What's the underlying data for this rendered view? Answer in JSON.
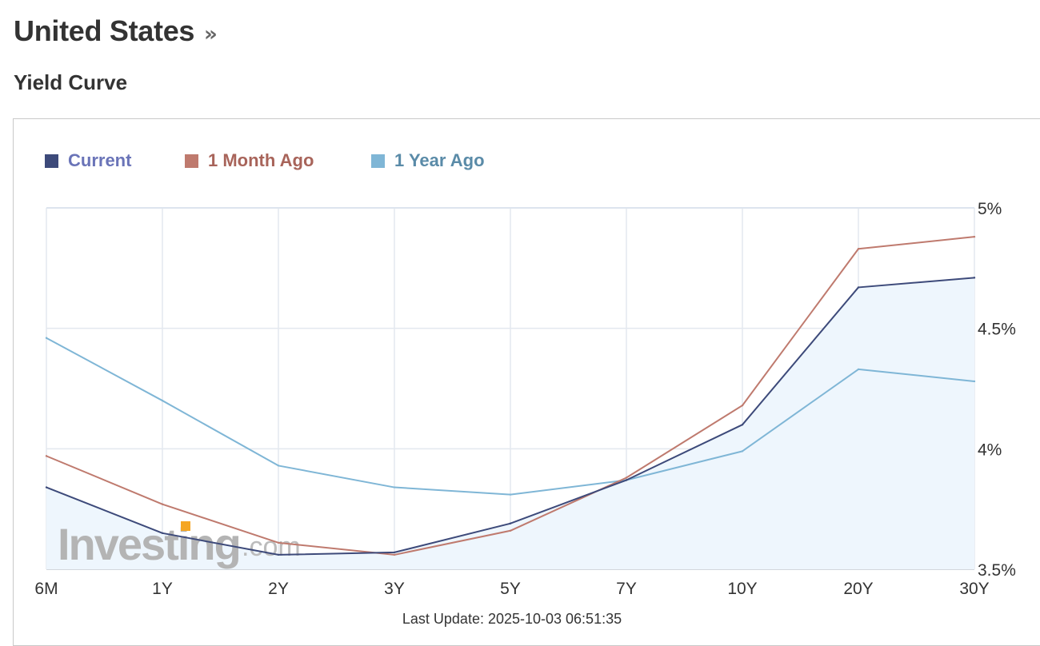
{
  "header": {
    "title": "United States",
    "arrow": "»",
    "subtitle": "Yield Curve"
  },
  "legend": [
    {
      "label": "Current",
      "swatch_color": "#3d4a7a",
      "text_color": "#6a74b8"
    },
    {
      "label": "1 Month Ago",
      "swatch_color": "#bf7a6e",
      "text_color": "#a8645a"
    },
    {
      "label": "1 Year Ago",
      "swatch_color": "#7fb6d6",
      "text_color": "#5a8ba8"
    }
  ],
  "watermark": {
    "brand": "Investing",
    "suffix": ".com",
    "accent": "#f5a623"
  },
  "footer": {
    "last_update": "Last Update: 2025-10-03 06:51:35"
  },
  "chart_data": {
    "type": "line",
    "categories": [
      "6M",
      "1Y",
      "2Y",
      "3Y",
      "5Y",
      "7Y",
      "10Y",
      "20Y",
      "30Y"
    ],
    "y_ticks": [
      "3.5%",
      "4%",
      "4.5%",
      "5%"
    ],
    "ylim": [
      3.5,
      5.0
    ],
    "y_axis_position": "right",
    "grid": true,
    "legend_position": "top-left",
    "series": [
      {
        "name": "Current",
        "color": "#3d4a7a",
        "area_fill": "#eef6fd",
        "values": [
          3.84,
          3.65,
          3.56,
          3.57,
          3.69,
          3.87,
          4.1,
          4.67,
          4.71
        ]
      },
      {
        "name": "1 Month Ago",
        "color": "#bf7a6e",
        "values": [
          3.97,
          3.77,
          3.61,
          3.56,
          3.66,
          3.88,
          4.18,
          4.83,
          4.88
        ]
      },
      {
        "name": "1 Year Ago",
        "color": "#7fb6d6",
        "values": [
          4.46,
          4.2,
          3.93,
          3.84,
          3.81,
          3.87,
          3.99,
          4.33,
          4.28
        ]
      }
    ]
  }
}
